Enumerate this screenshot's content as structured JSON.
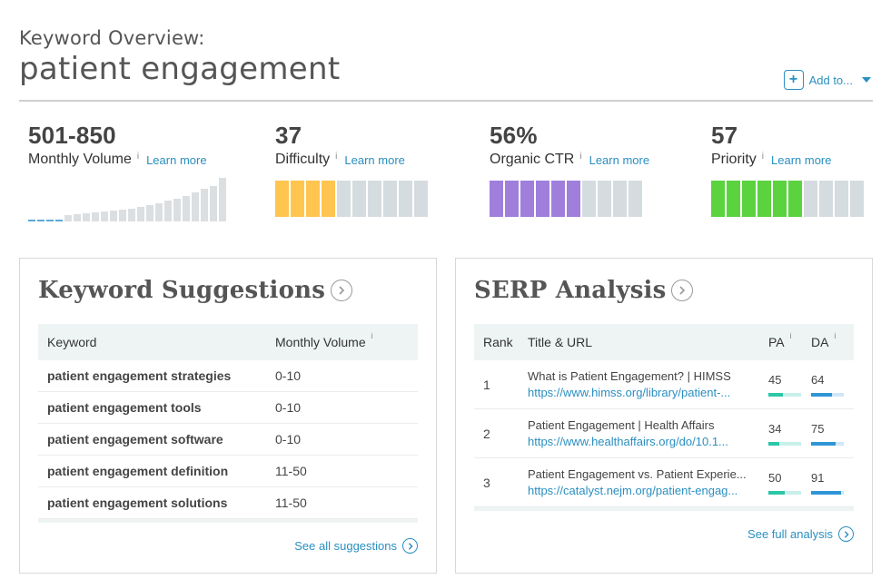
{
  "header": {
    "pre_title": "Keyword Overview:",
    "keyword": "patient engagement",
    "add_to": "Add to..."
  },
  "metrics": {
    "volume": {
      "value": "501-850",
      "label": "Monthly Volume",
      "info": "i",
      "learn_more": "Learn more"
    },
    "difficulty": {
      "value": "37",
      "label": "Difficulty",
      "info": "i",
      "learn_more": "Learn more",
      "filled_segments": 4,
      "total_segments": 10,
      "color": "#ffc54f"
    },
    "ctr": {
      "value": "56%",
      "label": "Organic CTR",
      "info": "i",
      "learn_more": "Learn more",
      "filled_segments": 6,
      "total_segments": 10,
      "color": "#a07fdc"
    },
    "priority": {
      "value": "57",
      "label": "Priority",
      "info": "i",
      "learn_more": "Learn more",
      "filled_segments": 6,
      "total_segments": 10,
      "color": "#5ad33f"
    },
    "volume_trend": [
      0,
      0,
      0,
      0,
      0.14,
      0.16,
      0.18,
      0.2,
      0.22,
      0.24,
      0.27,
      0.3,
      0.34,
      0.38,
      0.42,
      0.47,
      0.52,
      0.58,
      0.66,
      0.74,
      0.82,
      1.0
    ]
  },
  "keyword_suggestions": {
    "title": "Keyword Suggestions",
    "columns": [
      "Keyword",
      "Monthly Volume"
    ],
    "info": "i",
    "rows": [
      {
        "keyword": "patient engagement strategies",
        "volume": "0-10"
      },
      {
        "keyword": "patient engagement tools",
        "volume": "0-10"
      },
      {
        "keyword": "patient engagement software",
        "volume": "0-10"
      },
      {
        "keyword": "patient engagement definition",
        "volume": "11-50"
      },
      {
        "keyword": "patient engagement solutions",
        "volume": "11-50"
      }
    ],
    "see_all": "See all suggestions"
  },
  "serp": {
    "title": "SERP Analysis",
    "columns": [
      "Rank",
      "Title & URL",
      "PA",
      "DA"
    ],
    "info": "i",
    "rows": [
      {
        "rank": "1",
        "title": "What is Patient Engagement? | HIMSS",
        "url": "https://www.himss.org/library/patient-...",
        "pa": 45,
        "da": 64
      },
      {
        "rank": "2",
        "title": "Patient Engagement | Health Affairs",
        "url": "https://www.healthaffairs.org/do/10.1...",
        "pa": 34,
        "da": 75
      },
      {
        "rank": "3",
        "title": "Patient Engagement vs. Patient Experie...",
        "url": "https://catalyst.nejm.org/patient-engag...",
        "pa": 50,
        "da": 91
      }
    ],
    "see_full": "See full analysis"
  }
}
